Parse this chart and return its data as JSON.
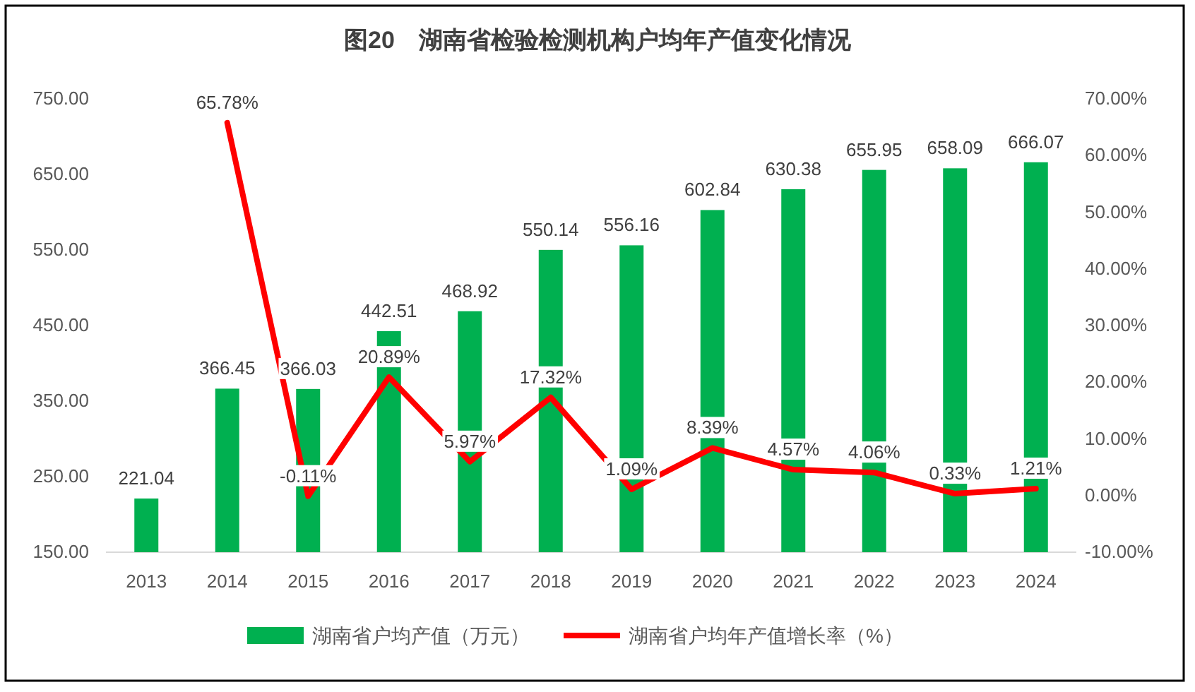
{
  "chart_data": {
    "type": "bar",
    "title": "图20　湖南省检验检测机构户均年产值变化情况",
    "categories": [
      "2013",
      "2014",
      "2015",
      "2016",
      "2017",
      "2018",
      "2019",
      "2020",
      "2021",
      "2022",
      "2023",
      "2024"
    ],
    "series": [
      {
        "name": "湖南省户均产值（万元）",
        "color": "#00b050",
        "values": [
          221.04,
          366.45,
          366.03,
          442.51,
          468.92,
          550.14,
          556.16,
          602.84,
          630.38,
          655.95,
          658.09,
          666.07
        ],
        "value_labels": [
          "221.04",
          "366.45",
          "366.03",
          "442.51",
          "468.92",
          "550.14",
          "556.16",
          "602.84",
          "630.38",
          "655.95",
          "658.09",
          "666.07"
        ]
      },
      {
        "name": "湖南省户均年产值增长率（%）",
        "type": "line",
        "axis": "y2",
        "color": "#ff0000",
        "values": [
          null,
          65.78,
          -0.11,
          20.89,
          5.97,
          17.32,
          1.09,
          8.39,
          4.57,
          4.06,
          0.33,
          1.21
        ],
        "value_labels": [
          null,
          "65.78%",
          "-0.11%",
          "20.89%",
          "5.97%",
          "17.32%",
          "1.09%",
          "8.39%",
          "4.57%",
          "4.06%",
          "0.33%",
          "1.21%"
        ]
      }
    ],
    "ylim": [
      150,
      750
    ],
    "yticks": [
      {
        "value": 150,
        "label": "150.00"
      },
      {
        "value": 250,
        "label": "250.00"
      },
      {
        "value": 350,
        "label": "350.00"
      },
      {
        "value": 450,
        "label": "450.00"
      },
      {
        "value": 550,
        "label": "550.00"
      },
      {
        "value": 650,
        "label": "650.00"
      },
      {
        "value": 750,
        "label": "750.00"
      }
    ],
    "y2lim": [
      -10,
      70
    ],
    "y2ticks": [
      {
        "value": -10,
        "label": "-10.00%"
      },
      {
        "value": 0,
        "label": "0.00%"
      },
      {
        "value": 10,
        "label": "10.00%"
      },
      {
        "value": 20,
        "label": "20.00%"
      },
      {
        "value": 30,
        "label": "30.00%"
      },
      {
        "value": 40,
        "label": "40.00%"
      },
      {
        "value": 50,
        "label": "50.00%"
      },
      {
        "value": 60,
        "label": "60.00%"
      },
      {
        "value": 70,
        "label": "70.00%"
      }
    ],
    "legend": "bottom"
  }
}
